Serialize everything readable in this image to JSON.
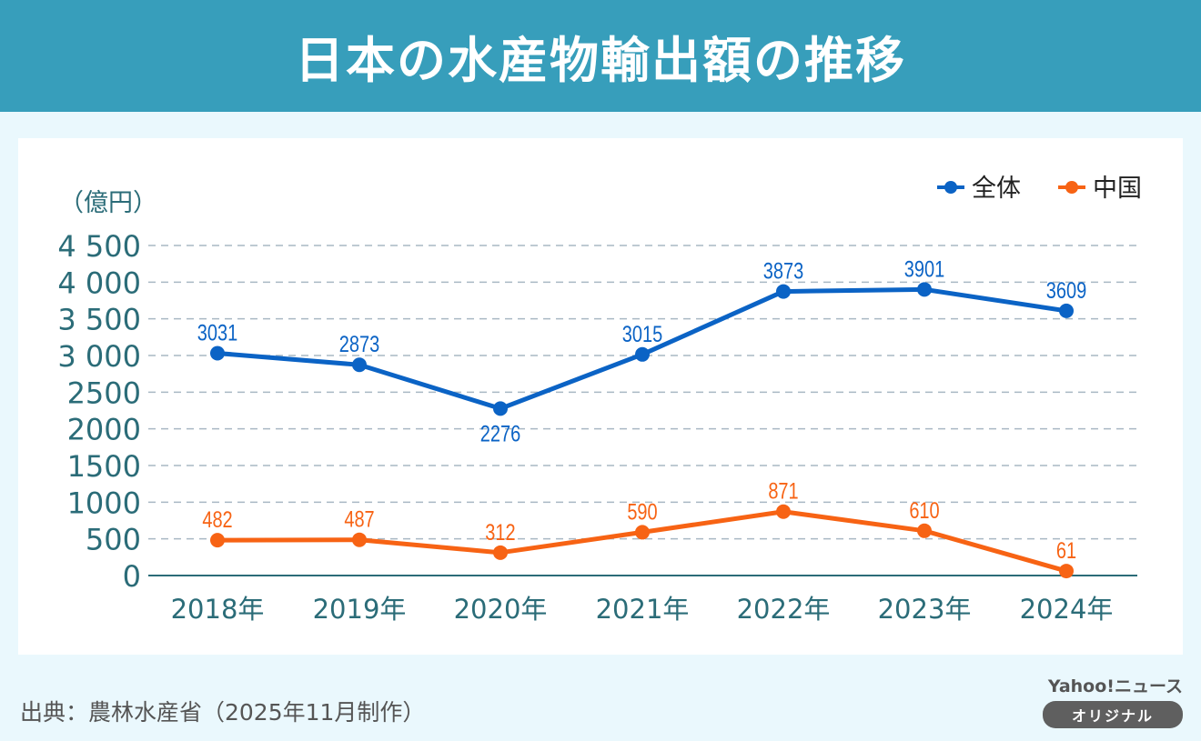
{
  "title": "日本の水産物輸出額の推移",
  "source": "出典：農林水産省（2025年11月制作）",
  "brand": {
    "name": "Yahoo!ニュース",
    "badge": "オリジナル"
  },
  "colors": {
    "header": "#379ebb",
    "total": "#0b63c5",
    "china": "#f76314",
    "axis": "#2b6c78",
    "grid": "#a9b8c4"
  },
  "chart_data": {
    "type": "line",
    "ylabel": "（億円）",
    "ylim": [
      0,
      4500
    ],
    "yticks": [
      0,
      500,
      1000,
      1500,
      2000,
      2500,
      3000,
      3500,
      4000,
      4500
    ],
    "ytick_labels": [
      "0",
      "500",
      "1000",
      "1500",
      "2000",
      "2500",
      "3 000",
      "3 500",
      "4 000",
      "4 500"
    ],
    "categories": [
      "2018年",
      "2019年",
      "2020年",
      "2021年",
      "2022年",
      "2023年",
      "2024年"
    ],
    "grid": true,
    "legend_position": "top-right",
    "series": [
      {
        "name": "全体",
        "color": "#0b63c5",
        "values": [
          3031,
          2873,
          2276,
          3015,
          3873,
          3901,
          3609
        ],
        "label_below": [
          false,
          false,
          true,
          false,
          false,
          false,
          false
        ]
      },
      {
        "name": "中国",
        "color": "#f76314",
        "values": [
          482,
          487,
          312,
          590,
          871,
          610,
          61
        ],
        "label_below": [
          false,
          false,
          false,
          false,
          false,
          false,
          false
        ]
      }
    ]
  }
}
